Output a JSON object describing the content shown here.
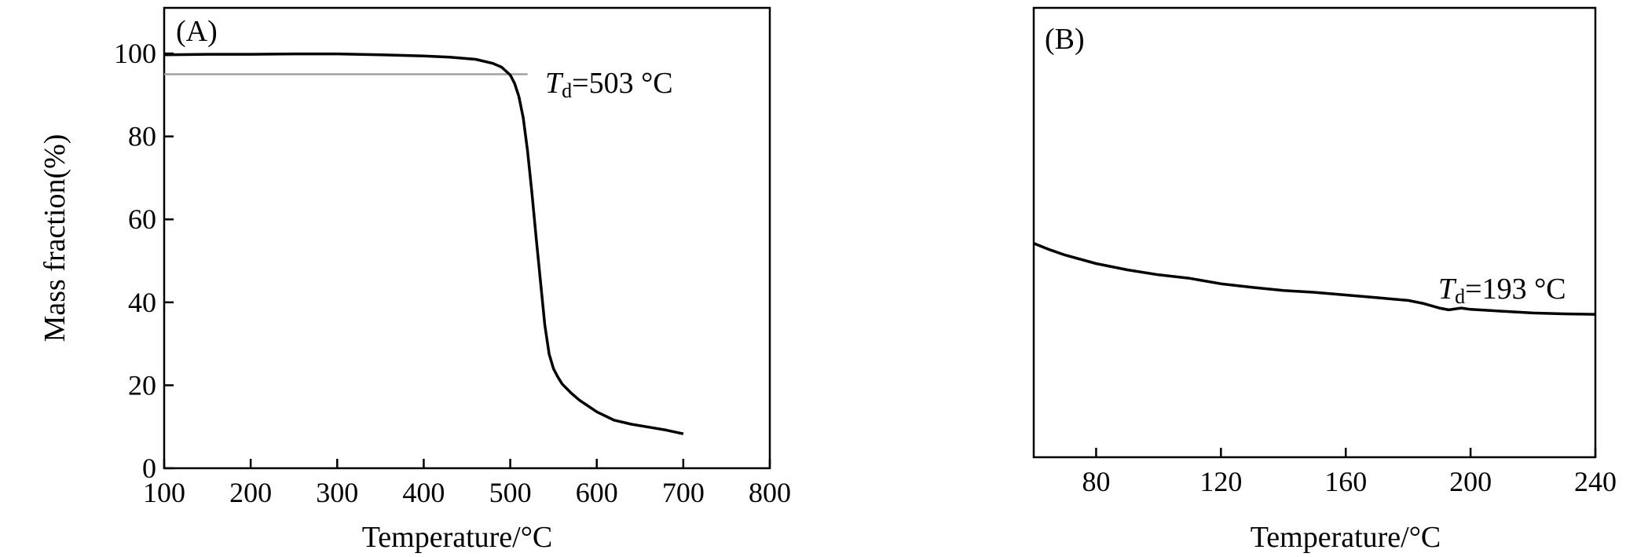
{
  "chart_data": [
    {
      "type": "line",
      "panel_label": "(A)",
      "xlabel": "Temperature/°C",
      "ylabel": "Mass fraction(%)",
      "xlim": [
        100,
        800
      ],
      "ylim": [
        0,
        111
      ],
      "xticks": [
        100,
        200,
        300,
        400,
        500,
        600,
        700,
        800
      ],
      "yticks": [
        0,
        20,
        40,
        60,
        80,
        100
      ],
      "grid": false,
      "series": [
        {
          "x": [
            100,
            150,
            200,
            250,
            300,
            350,
            400,
            430,
            460,
            480,
            490,
            500,
            505,
            510,
            515,
            520,
            525,
            530,
            535,
            540,
            545,
            550,
            555,
            560,
            570,
            580,
            600,
            620,
            640,
            660,
            680,
            700
          ],
          "y": [
            99.7,
            99.8,
            99.8,
            99.9,
            99.9,
            99.7,
            99.4,
            99.1,
            98.6,
            97.6,
            96.7,
            94.8,
            92.8,
            89.6,
            84.5,
            76.5,
            66.5,
            55.5,
            45.0,
            34.5,
            27.5,
            24.0,
            22.0,
            20.3,
            18.2,
            16.4,
            13.6,
            11.6,
            10.6,
            9.9,
            9.2,
            8.3
          ]
        }
      ],
      "reference_line": {
        "y": 95,
        "x_start": 100,
        "x_end": 520
      },
      "annotation": {
        "T": "T",
        "sub": "d",
        "text": "=503 °C"
      }
    },
    {
      "type": "line",
      "panel_label": "(B)",
      "xlabel": "Temperature/°C",
      "ylabel": "",
      "xlim": [
        60,
        240
      ],
      "ylim": [
        0,
        100
      ],
      "xticks": [
        80,
        120,
        160,
        200,
        240
      ],
      "yticks": [],
      "grid": false,
      "series": [
        {
          "x": [
            60,
            65,
            70,
            80,
            90,
            100,
            110,
            120,
            130,
            140,
            150,
            160,
            170,
            180,
            185,
            190,
            193,
            197,
            200,
            210,
            220,
            230,
            240
          ],
          "y": [
            47.6,
            46.2,
            45.0,
            43.1,
            41.7,
            40.6,
            39.8,
            38.6,
            37.8,
            37.1,
            36.7,
            36.1,
            35.5,
            34.9,
            34.2,
            33.2,
            32.8,
            33.2,
            32.9,
            32.5,
            32.1,
            31.9,
            31.8
          ]
        }
      ],
      "annotation": {
        "T": "T",
        "sub": "d",
        "text": "=193 °C"
      }
    }
  ]
}
